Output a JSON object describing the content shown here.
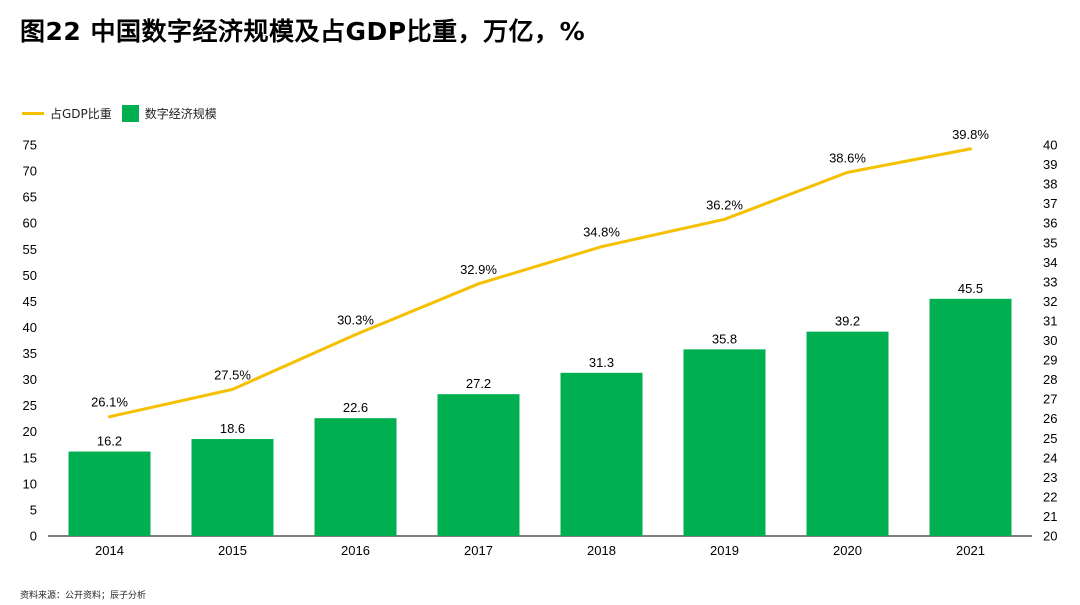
{
  "title": "图22 中国数字经济规模及占GDP比重，万亿，%",
  "source": "资料来源：公开资料；辰子分析",
  "colors": {
    "bar": "#00b050",
    "line": "#f5c000"
  },
  "chart_data": {
    "type": "bar+line",
    "categories": [
      "2014",
      "2015",
      "2016",
      "2017",
      "2018",
      "2019",
      "2020",
      "2021"
    ],
    "series": [
      {
        "name": "数字经济规模",
        "type": "bar",
        "axis": "left",
        "values": [
          16.2,
          18.6,
          22.6,
          27.2,
          31.3,
          35.8,
          39.2,
          45.5
        ],
        "labels": [
          "16.2",
          "18.6",
          "22.6",
          "27.2",
          "31.3",
          "35.8",
          "39.2",
          "45.5"
        ]
      },
      {
        "name": "占GDP比重",
        "type": "line",
        "axis": "right",
        "values": [
          26.1,
          27.5,
          30.3,
          32.9,
          34.8,
          36.2,
          38.6,
          39.8
        ],
        "labels": [
          "26.1%",
          "27.5%",
          "30.3%",
          "32.9%",
          "34.8%",
          "36.2%",
          "38.6%",
          "39.8%"
        ]
      }
    ],
    "y_left": {
      "min": 0,
      "max": 75,
      "step": 5
    },
    "y_right": {
      "min": 20,
      "max": 40,
      "step": 1
    },
    "grid": false,
    "legend_position": "top-left"
  }
}
